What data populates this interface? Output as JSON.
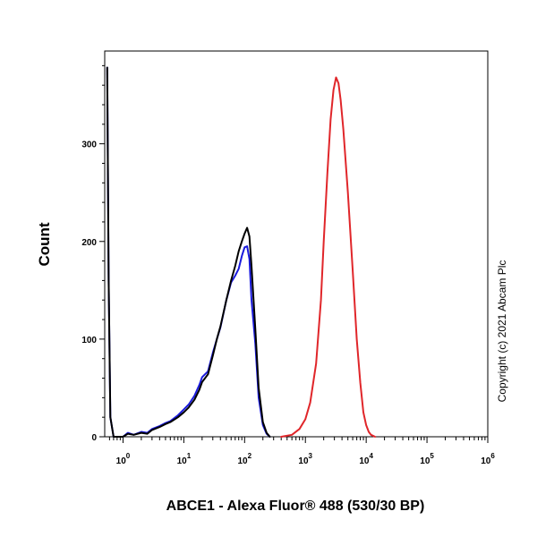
{
  "chart_data": {
    "type": "line",
    "xlabel": "ABCE1 - Alexa Fluor® 488 (530/30 BP)",
    "ylabel": "Count",
    "x_scale": "log",
    "xlim": [
      0.5,
      1000000
    ],
    "ylim": [
      0,
      395
    ],
    "x_tick_base": "10",
    "x_ticks": [
      {
        "value": 1,
        "exp": "0"
      },
      {
        "value": 10,
        "exp": "1"
      },
      {
        "value": 100,
        "exp": "2"
      },
      {
        "value": 1000,
        "exp": "3"
      },
      {
        "value": 10000,
        "exp": "4"
      },
      {
        "value": 100000,
        "exp": "5"
      },
      {
        "value": 1000000,
        "exp": "6"
      }
    ],
    "y_ticks": [
      "0",
      "100",
      "200",
      "300"
    ],
    "grid": false,
    "legend": "none",
    "series": [
      {
        "color": "#1a1adc",
        "points": [
          [
            0.55,
            378
          ],
          [
            0.58,
            160
          ],
          [
            0.62,
            20
          ],
          [
            0.7,
            0
          ],
          [
            1.0,
            0
          ],
          [
            1.2,
            4
          ],
          [
            1.5,
            2
          ],
          [
            2.0,
            5
          ],
          [
            2.5,
            4
          ],
          [
            3.0,
            8
          ],
          [
            4.0,
            11
          ],
          [
            5.0,
            14
          ],
          [
            6.0,
            16
          ],
          [
            8.0,
            22
          ],
          [
            10,
            28
          ],
          [
            12,
            33
          ],
          [
            15,
            42
          ],
          [
            18,
            53
          ],
          [
            20,
            61
          ],
          [
            25,
            67
          ],
          [
            30,
            86
          ],
          [
            35,
            100
          ],
          [
            40,
            112
          ],
          [
            50,
            140
          ],
          [
            60,
            158
          ],
          [
            70,
            165
          ],
          [
            80,
            172
          ],
          [
            90,
            185
          ],
          [
            100,
            194
          ],
          [
            110,
            195
          ],
          [
            120,
            182
          ],
          [
            130,
            140
          ],
          [
            150,
            95
          ],
          [
            170,
            40
          ],
          [
            200,
            12
          ],
          [
            230,
            3
          ],
          [
            260,
            0
          ]
        ]
      },
      {
        "color": "#000000",
        "points": [
          [
            0.55,
            378
          ],
          [
            0.58,
            160
          ],
          [
            0.62,
            20
          ],
          [
            0.7,
            0
          ],
          [
            1.0,
            0
          ],
          [
            1.2,
            3
          ],
          [
            1.5,
            2
          ],
          [
            2.0,
            4
          ],
          [
            2.5,
            3
          ],
          [
            3.0,
            7
          ],
          [
            4.0,
            10
          ],
          [
            5.0,
            13
          ],
          [
            6.0,
            15
          ],
          [
            8.0,
            20
          ],
          [
            10,
            25
          ],
          [
            12,
            30
          ],
          [
            15,
            38
          ],
          [
            18,
            48
          ],
          [
            20,
            56
          ],
          [
            25,
            64
          ],
          [
            30,
            83
          ],
          [
            35,
            100
          ],
          [
            40,
            113
          ],
          [
            50,
            140
          ],
          [
            60,
            160
          ],
          [
            70,
            175
          ],
          [
            80,
            190
          ],
          [
            90,
            200
          ],
          [
            100,
            208
          ],
          [
            110,
            214
          ],
          [
            120,
            205
          ],
          [
            130,
            175
          ],
          [
            150,
            110
          ],
          [
            170,
            50
          ],
          [
            200,
            15
          ],
          [
            230,
            4
          ],
          [
            260,
            0
          ]
        ]
      },
      {
        "color": "#e0262a",
        "points": [
          [
            400,
            0
          ],
          [
            600,
            2
          ],
          [
            800,
            8
          ],
          [
            1000,
            18
          ],
          [
            1200,
            35
          ],
          [
            1500,
            75
          ],
          [
            1800,
            140
          ],
          [
            2000,
            200
          ],
          [
            2300,
            270
          ],
          [
            2600,
            325
          ],
          [
            2900,
            355
          ],
          [
            3200,
            368
          ],
          [
            3500,
            362
          ],
          [
            3800,
            345
          ],
          [
            4200,
            315
          ],
          [
            5000,
            250
          ],
          [
            6000,
            170
          ],
          [
            7000,
            100
          ],
          [
            8000,
            55
          ],
          [
            9000,
            25
          ],
          [
            10000,
            12
          ],
          [
            11000,
            5
          ],
          [
            12000,
            2
          ],
          [
            14000,
            0
          ]
        ]
      }
    ]
  },
  "copyright": "Copyright (c) 2021 Abcam Plc"
}
